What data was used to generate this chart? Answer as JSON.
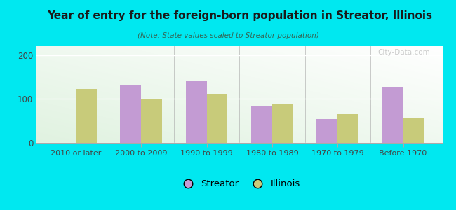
{
  "title": "Year of entry for the foreign-born population in Streator, Illinois",
  "subtitle": "(Note: State values scaled to Streator population)",
  "categories": [
    "2010 or later",
    "2000 to 2009",
    "1990 to 1999",
    "1980 to 1989",
    "1970 to 1979",
    "Before 1970"
  ],
  "streator": [
    0,
    130,
    140,
    85,
    55,
    128
  ],
  "illinois": [
    122,
    100,
    110,
    90,
    65,
    58
  ],
  "streator_color": "#c39bd3",
  "illinois_color": "#c8cb7a",
  "background_outer": "#00e8f0",
  "plot_bg_topleft": "#e8f5e0",
  "plot_bg_topright": "#f8fcf5",
  "ylim": [
    0,
    220
  ],
  "yticks": [
    0,
    100,
    200
  ],
  "bar_width": 0.32,
  "legend_labels": [
    "Streator",
    "Illinois"
  ],
  "watermark": "City-Data.com"
}
